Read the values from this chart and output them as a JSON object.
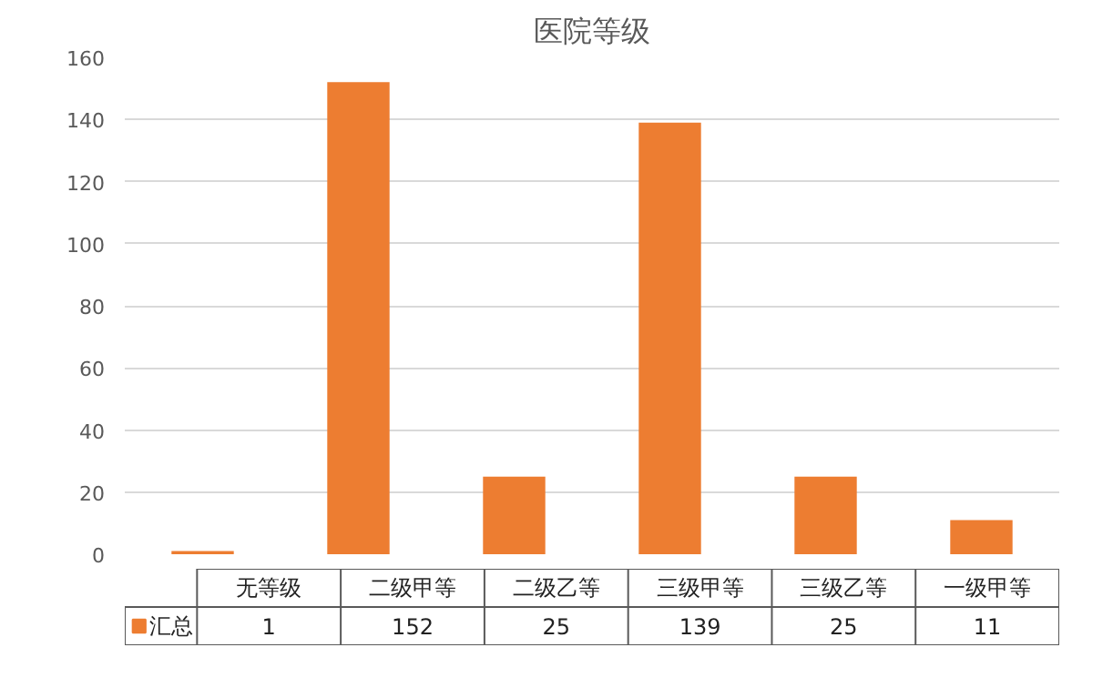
{
  "chart_data": {
    "type": "bar",
    "title": "医院等级",
    "categories": [
      "无等级",
      "二级甲等",
      "二级乙等",
      "三级甲等",
      "三级乙等",
      "一级甲等"
    ],
    "series": [
      {
        "name": "汇总",
        "color": "#ed7d31",
        "values": [
          1,
          152,
          25,
          139,
          25,
          11
        ]
      }
    ],
    "ylim": [
      0,
      160
    ],
    "yticks": [
      0,
      20,
      40,
      60,
      80,
      100,
      120,
      140,
      160
    ],
    "grid": "y",
    "legend": "bottom",
    "data_labels": true
  }
}
